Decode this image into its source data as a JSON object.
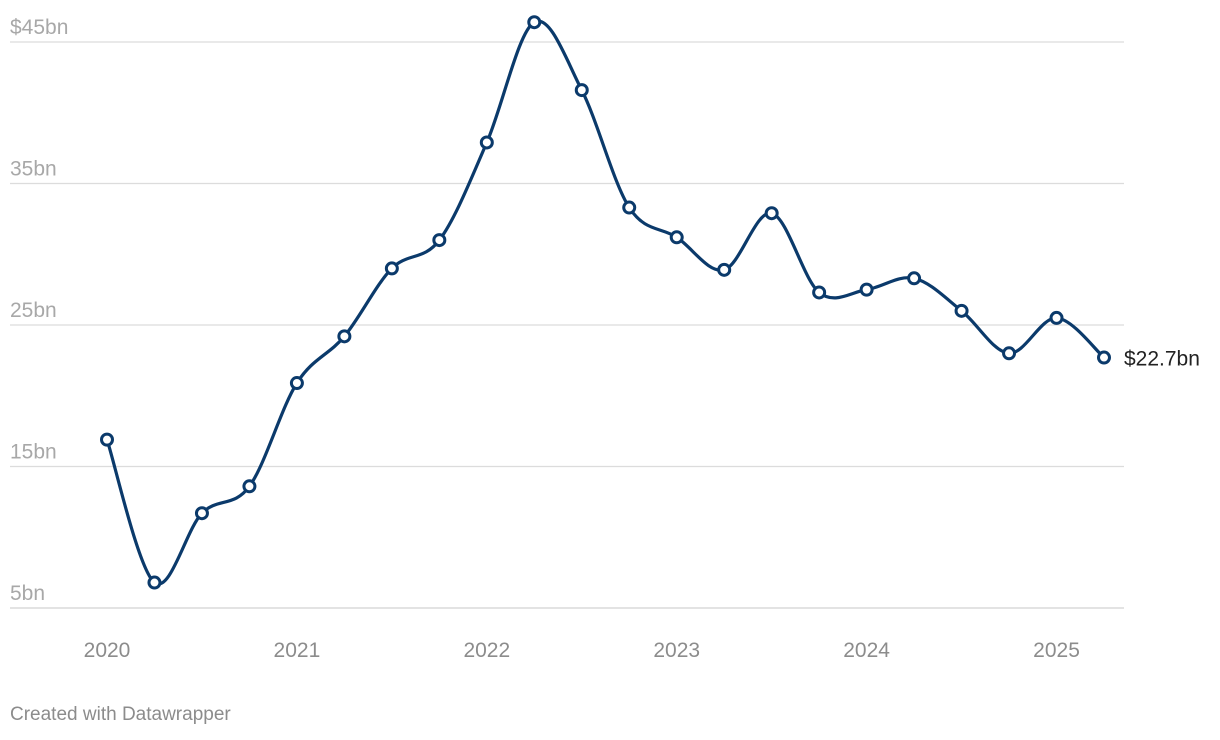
{
  "chart_data": {
    "type": "line",
    "title": "",
    "xlabel": "",
    "ylabel": "",
    "x_ticks": [
      "2020",
      "2021",
      "2022",
      "2023",
      "2024",
      "2025"
    ],
    "y_ticks": [
      "$45bn",
      "35bn",
      "25bn",
      "15bn",
      "5bn"
    ],
    "y_tick_values": [
      45,
      35,
      25,
      15,
      5
    ],
    "ylim": [
      5,
      45
    ],
    "xlim": [
      "2020-Q1",
      "2025-Q2"
    ],
    "grid": true,
    "legend": "none",
    "series": [
      {
        "name": "",
        "color": "#0b3a6b",
        "points": [
          {
            "x": "2020-Q1",
            "y": 16.9
          },
          {
            "x": "2020-Q2",
            "y": 6.8
          },
          {
            "x": "2020-Q3",
            "y": 11.7
          },
          {
            "x": "2020-Q4",
            "y": 13.6
          },
          {
            "x": "2021-Q1",
            "y": 20.9
          },
          {
            "x": "2021-Q2",
            "y": 24.2
          },
          {
            "x": "2021-Q3",
            "y": 29.0
          },
          {
            "x": "2021-Q4",
            "y": 31.0
          },
          {
            "x": "2022-Q1",
            "y": 37.9
          },
          {
            "x": "2022-Q2",
            "y": 46.4
          },
          {
            "x": "2022-Q3",
            "y": 41.6
          },
          {
            "x": "2022-Q4",
            "y": 33.3
          },
          {
            "x": "2023-Q1",
            "y": 31.2
          },
          {
            "x": "2023-Q2",
            "y": 28.9
          },
          {
            "x": "2023-Q3",
            "y": 32.9
          },
          {
            "x": "2023-Q4",
            "y": 27.3
          },
          {
            "x": "2024-Q1",
            "y": 27.5
          },
          {
            "x": "2024-Q2",
            "y": 28.3
          },
          {
            "x": "2024-Q3",
            "y": 26.0
          },
          {
            "x": "2024-Q4",
            "y": 23.0
          },
          {
            "x": "2025-Q1",
            "y": 25.5
          },
          {
            "x": "2025-Q2",
            "y": 22.7
          }
        ]
      }
    ],
    "annotations": [
      {
        "text": "$22.7bn",
        "anchor": "last-point"
      }
    ]
  },
  "footer": {
    "credit": "Created with Datawrapper"
  }
}
